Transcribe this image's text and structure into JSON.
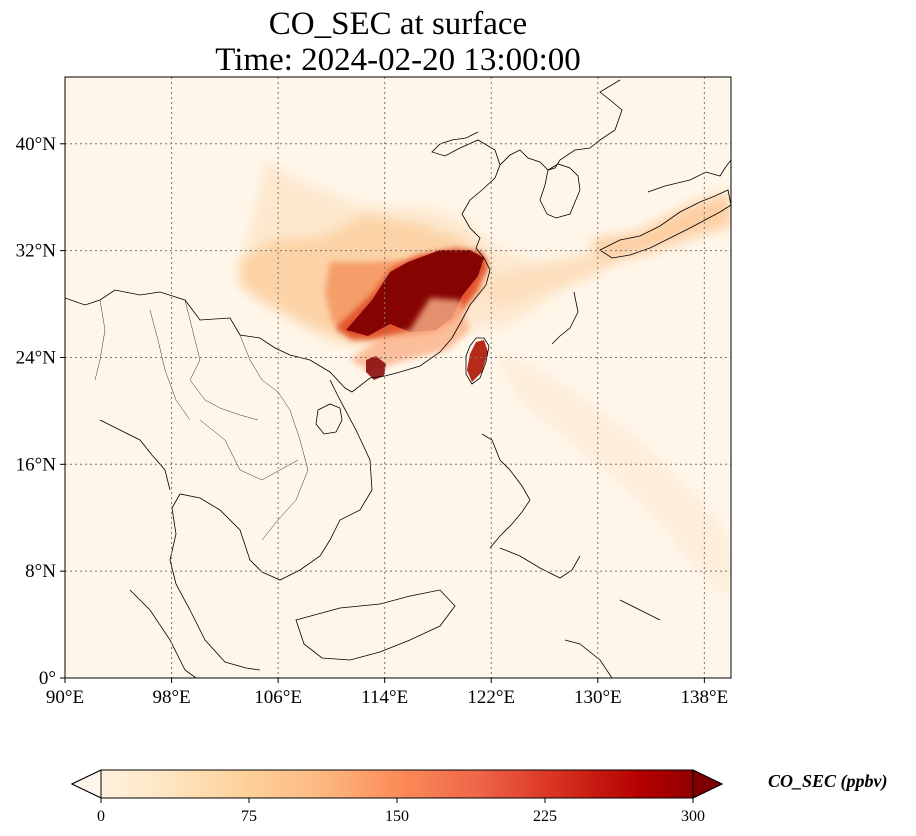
{
  "title": {
    "line1": "CO_SEC at surface",
    "line2": "Time: 2024-02-20 13:00:00"
  },
  "map": {
    "projection": "PlateCarree",
    "extent": {
      "lon_min": 90,
      "lon_max": 140,
      "lat_min": 0,
      "lat_max": 45
    },
    "gridlines": "dotted",
    "lon_ticks": [
      90,
      98,
      106,
      114,
      122,
      130,
      138
    ],
    "lat_ticks": [
      0,
      8,
      16,
      24,
      32,
      40
    ],
    "lon_tick_labels": [
      "90°E",
      "98°E",
      "106°E",
      "114°E",
      "122°E",
      "130°E",
      "138°E"
    ],
    "lat_tick_labels": [
      "0°",
      "8°N",
      "16°N",
      "24°N",
      "32°N",
      "40°N"
    ],
    "colormap": "OrRd",
    "hotspots": [
      {
        "region": "Yangtze River basin / East China",
        "lon_center": 116,
        "lat_center": 29.5,
        "level": "> 300"
      },
      {
        "region": "Pearl River Delta",
        "lon_center": 113.5,
        "lat_center": 23,
        "level": "> 300"
      },
      {
        "region": "Western Taiwan",
        "lon_center": 120.5,
        "lat_center": 24,
        "level": "~250"
      },
      {
        "region": "Central / North China plume",
        "lon_center": 112,
        "lat_center": 33,
        "level": "~75-150"
      },
      {
        "region": "Southern Japan",
        "lon_center": 133,
        "lat_center": 33.5,
        "level": "~75-100"
      }
    ]
  },
  "colorbar": {
    "label": "CO_SEC (ppbv)",
    "min": 0,
    "max": 300,
    "extend": "both",
    "ticks": [
      0,
      75,
      150,
      225,
      300
    ],
    "tick_labels": [
      "0",
      "75",
      "150",
      "225",
      "300"
    ],
    "colors": [
      "#fff7ec",
      "#fee8c8",
      "#fdd49e",
      "#fdbb84",
      "#fc8d59",
      "#ef6548",
      "#d7301f",
      "#b30000",
      "#7f0000"
    ]
  }
}
